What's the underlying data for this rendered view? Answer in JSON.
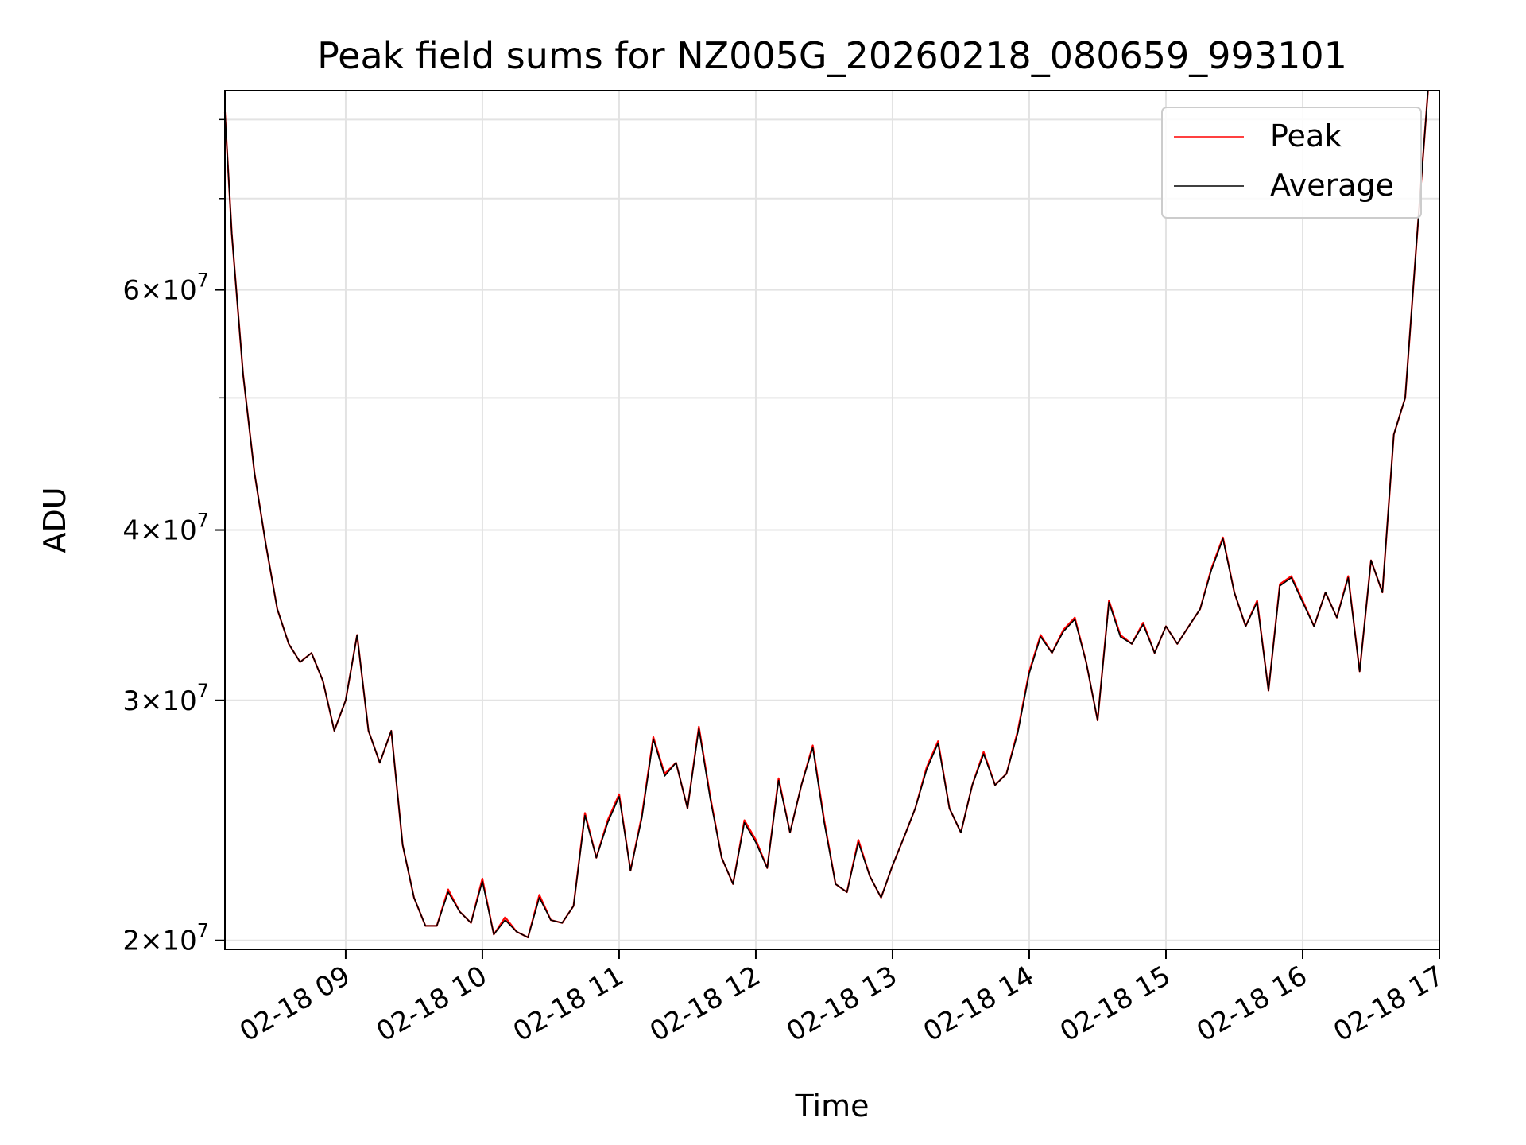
{
  "chart_data": {
    "type": "line",
    "title": "Peak field sums for NZ005G_20260218_080659_993101",
    "xlabel": "Time",
    "ylabel": "ADU",
    "y_scale": "log",
    "ylim": [
      19700000,
      84000000
    ],
    "xlim": [
      "02-18 08:07",
      "02-18 17:00"
    ],
    "grid": true,
    "legend_position": "top-right",
    "x_ticks": [
      "02-18 09",
      "02-18 10",
      "02-18 11",
      "02-18 12",
      "02-18 13",
      "02-18 14",
      "02-18 15",
      "02-18 16",
      "02-18 17"
    ],
    "y_ticks": [
      {
        "value": 20000000,
        "mantissa": "2",
        "exponent": "7"
      },
      {
        "value": 30000000,
        "mantissa": "3",
        "exponent": "7"
      },
      {
        "value": 40000000,
        "mantissa": "4",
        "exponent": "7"
      },
      {
        "value": 60000000,
        "mantissa": "6",
        "exponent": "7"
      }
    ],
    "y_minor_ticks": [
      50000000,
      70000000,
      80000000
    ],
    "times": [
      "08:07",
      "08:10",
      "08:15",
      "08:20",
      "08:25",
      "08:30",
      "08:35",
      "08:40",
      "08:45",
      "08:50",
      "08:55",
      "09:00",
      "09:05",
      "09:10",
      "09:15",
      "09:20",
      "09:25",
      "09:30",
      "09:35",
      "09:40",
      "09:45",
      "09:50",
      "09:55",
      "10:00",
      "10:05",
      "10:10",
      "10:15",
      "10:20",
      "10:25",
      "10:30",
      "10:35",
      "10:40",
      "10:45",
      "10:50",
      "10:55",
      "11:00",
      "11:05",
      "11:10",
      "11:15",
      "11:20",
      "11:25",
      "11:30",
      "11:35",
      "11:40",
      "11:45",
      "11:50",
      "11:55",
      "12:00",
      "12:05",
      "12:10",
      "12:15",
      "12:20",
      "12:25",
      "12:30",
      "12:35",
      "12:40",
      "12:45",
      "12:50",
      "12:55",
      "13:00",
      "13:05",
      "13:10",
      "13:15",
      "13:20",
      "13:25",
      "13:30",
      "13:35",
      "13:40",
      "13:45",
      "13:50",
      "13:55",
      "14:00",
      "14:05",
      "14:10",
      "14:15",
      "14:20",
      "14:25",
      "14:30",
      "14:35",
      "14:40",
      "14:45",
      "14:50",
      "14:55",
      "15:00",
      "15:05",
      "15:10",
      "15:15",
      "15:20",
      "15:25",
      "15:30",
      "15:35",
      "15:40",
      "15:45",
      "15:50",
      "15:55",
      "16:00",
      "16:05",
      "16:10",
      "16:15",
      "16:20",
      "16:25",
      "16:30",
      "16:35",
      "16:40",
      "16:45",
      "16:50",
      "16:55",
      "17:00"
    ],
    "series": [
      {
        "name": "Peak",
        "color": "#ff0000",
        "values": [
          81000000,
          66000000,
          52000000,
          44000000,
          39000000,
          35000000,
          33000000,
          32000000,
          32500000,
          31000000,
          28500000,
          30000000,
          33500000,
          28500000,
          27000000,
          28500000,
          23500000,
          21500000,
          20500000,
          20500000,
          21800000,
          21000000,
          20600000,
          22200000,
          20200000,
          20800000,
          20300000,
          20100000,
          21600000,
          20700000,
          20600000,
          21200000,
          24800000,
          23000000,
          24500000,
          25600000,
          22500000,
          24700000,
          28200000,
          26500000,
          27000000,
          25000000,
          28700000,
          25500000,
          23000000,
          22000000,
          24500000,
          23700000,
          22600000,
          26300000,
          24000000,
          26000000,
          27800000,
          24500000,
          22000000,
          21700000,
          23700000,
          22300000,
          21500000,
          22700000,
          23800000,
          25000000,
          26800000,
          28000000,
          25000000,
          24000000,
          26000000,
          27500000,
          26000000,
          26500000,
          28500000,
          31500000,
          33500000,
          32500000,
          33800000,
          34500000,
          32000000,
          29000000,
          35500000,
          33500000,
          33000000,
          34200000,
          32500000,
          34000000,
          33000000,
          34000000,
          35000000,
          37500000,
          39500000,
          36000000,
          34000000,
          35500000,
          30500000,
          36500000,
          37000000,
          35500000,
          34000000,
          36000000,
          34500000,
          37000000,
          31500000,
          38000000,
          36000000,
          47000000,
          50000000,
          65000000,
          84000000
        ]
      },
      {
        "name": "Average",
        "color": "#000000",
        "values": [
          81000000,
          66000000,
          52000000,
          44000000,
          39000000,
          35000000,
          33000000,
          32000000,
          32500000,
          31000000,
          28500000,
          30000000,
          33500000,
          28500000,
          27000000,
          28500000,
          23500000,
          21500000,
          20500000,
          20500000,
          21700000,
          21000000,
          20600000,
          22100000,
          20200000,
          20700000,
          20300000,
          20100000,
          21500000,
          20700000,
          20600000,
          21200000,
          24700000,
          23000000,
          24400000,
          25500000,
          22500000,
          24600000,
          28100000,
          26400000,
          27000000,
          25000000,
          28600000,
          25400000,
          23000000,
          22000000,
          24400000,
          23600000,
          22600000,
          26200000,
          24000000,
          26000000,
          27700000,
          24400000,
          22000000,
          21700000,
          23600000,
          22300000,
          21500000,
          22700000,
          23800000,
          25000000,
          26700000,
          27900000,
          25000000,
          24000000,
          26000000,
          27400000,
          26000000,
          26500000,
          28400000,
          31400000,
          33400000,
          32500000,
          33700000,
          34400000,
          32000000,
          29000000,
          35400000,
          33400000,
          33000000,
          34100000,
          32500000,
          34000000,
          33000000,
          34000000,
          35000000,
          37400000,
          39400000,
          36000000,
          34000000,
          35400000,
          30500000,
          36400000,
          36900000,
          35400000,
          34000000,
          36000000,
          34500000,
          36900000,
          31500000,
          38000000,
          36000000,
          47000000,
          50000000,
          65000000,
          84000000
        ]
      }
    ]
  }
}
